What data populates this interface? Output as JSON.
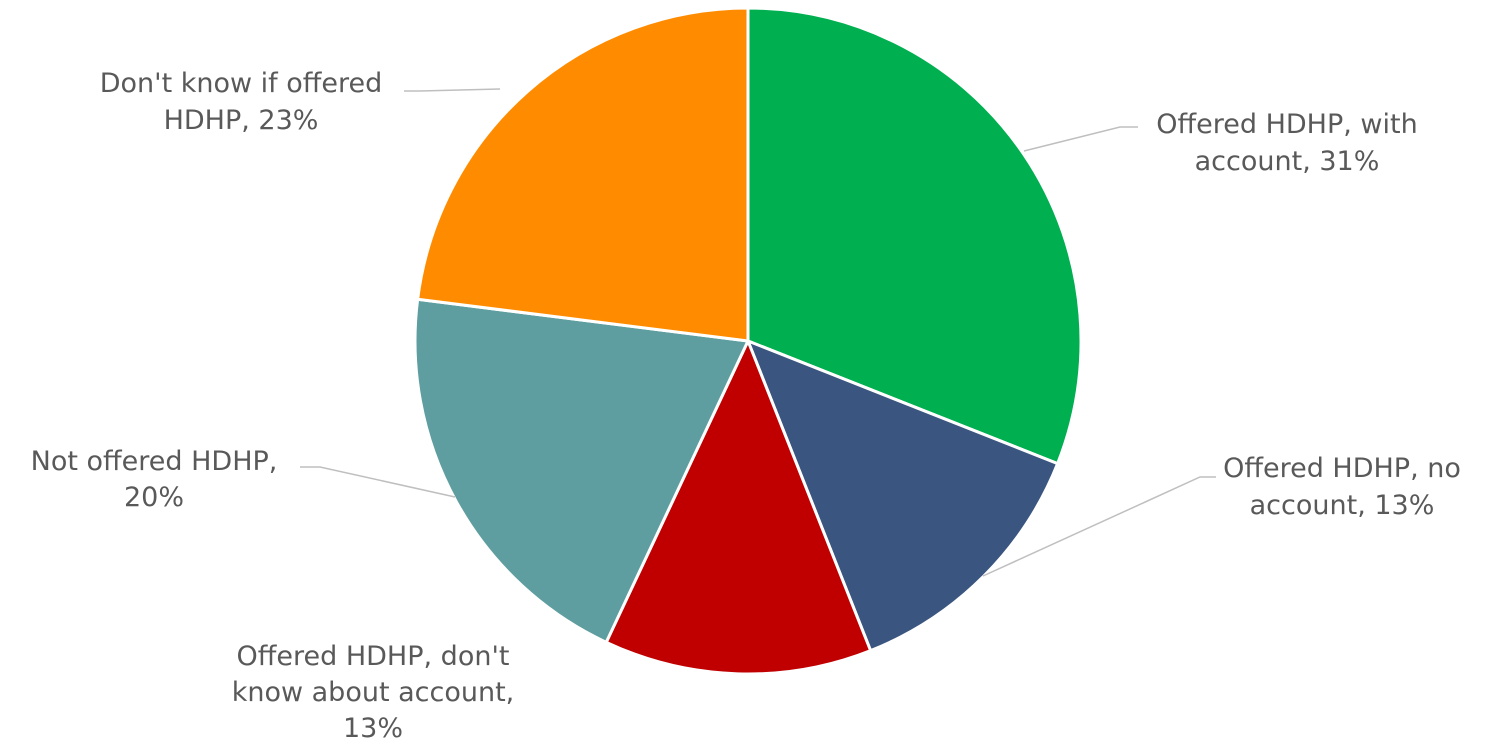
{
  "chart_data": {
    "type": "pie",
    "title": "",
    "start_angle_deg": 0,
    "direction": "clockwise",
    "slices": [
      {
        "name": "Offered HDHP, with account",
        "value": 31,
        "label_lines": [
          "Offered HDHP, with",
          "account, 31%"
        ],
        "color": "#00B050"
      },
      {
        "name": "Offered HDHP, no account",
        "value": 13,
        "label_lines": [
          "Offered HDHP, no",
          "account, 13%"
        ],
        "color": "#3A557F"
      },
      {
        "name": "Offered HDHP, don't know about account",
        "value": 13,
        "label_lines": [
          "Offered HDHP, don't",
          "know about account,",
          "13%"
        ],
        "color": "#C00000"
      },
      {
        "name": "Not offered HDHP",
        "value": 20,
        "label_lines": [
          "Not offered HDHP,",
          "20%"
        ],
        "color": "#5F9EA0"
      },
      {
        "name": "Don't know if offered HDHP",
        "value": 23,
        "label_lines": [
          "Don't know if offered",
          "HDHP, 23%"
        ],
        "color": "#FF8C00"
      }
    ]
  }
}
